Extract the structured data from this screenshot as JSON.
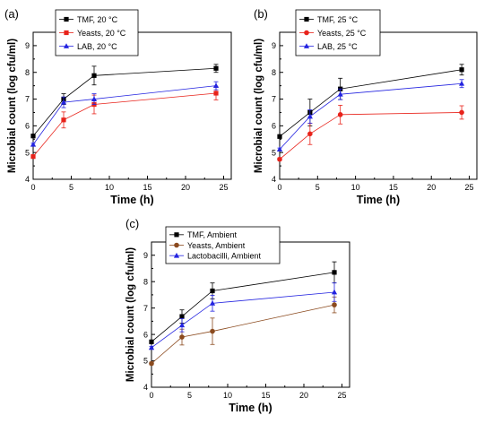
{
  "chart_data": [
    {
      "type": "line",
      "panel_label": "(a)",
      "xlabel": "Time (h)",
      "ylabel": "Microbial count (log cfu/ml)",
      "xlim": [
        0,
        26
      ],
      "ylim": [
        4,
        9.5
      ],
      "xticks": [
        0,
        5,
        10,
        15,
        20,
        25
      ],
      "yticks": [
        4,
        5,
        6,
        7,
        8,
        9
      ],
      "legend_position": "top-left",
      "series": [
        {
          "name": "TMF, 20 °C",
          "color": "#000000",
          "marker": "square",
          "x": [
            0,
            4,
            8,
            24
          ],
          "y": [
            5.62,
            7.0,
            7.88,
            8.15
          ],
          "err": [
            0.05,
            0.2,
            0.35,
            0.15
          ]
        },
        {
          "name": "Yeasts, 20 °C",
          "color": "#e8231b",
          "marker": "square",
          "x": [
            0,
            4,
            8,
            24
          ],
          "y": [
            4.85,
            6.22,
            6.8,
            7.22
          ],
          "err": [
            0.05,
            0.3,
            0.35,
            0.25
          ]
        },
        {
          "name": "LAB, 20 °C",
          "color": "#2323e0",
          "marker": "triangle",
          "x": [
            0,
            4,
            8,
            24
          ],
          "y": [
            5.3,
            6.88,
            7.0,
            7.5
          ],
          "err": [
            0.05,
            0.2,
            0.2,
            0.15
          ]
        }
      ]
    },
    {
      "type": "line",
      "panel_label": "(b)",
      "xlabel": "Time (h)",
      "ylabel": "Microbial count (log cfu/ml)",
      "xlim": [
        0,
        26
      ],
      "ylim": [
        4,
        9.5
      ],
      "xticks": [
        0,
        5,
        10,
        15,
        20,
        25
      ],
      "yticks": [
        4,
        5,
        6,
        7,
        8,
        9
      ],
      "legend_position": "top-left",
      "series": [
        {
          "name": "TMF, 25 °C",
          "color": "#000000",
          "marker": "square",
          "x": [
            0,
            4,
            8,
            24
          ],
          "y": [
            5.6,
            6.5,
            7.38,
            8.1
          ],
          "err": [
            0.05,
            0.5,
            0.4,
            0.2
          ]
        },
        {
          "name": "Yeasts, 25 °C",
          "color": "#e8231b",
          "marker": "circle",
          "x": [
            0,
            4,
            8,
            24
          ],
          "y": [
            4.75,
            5.7,
            6.42,
            6.5
          ],
          "err": [
            0.05,
            0.4,
            0.35,
            0.25
          ]
        },
        {
          "name": "LAB, 25 °C",
          "color": "#2323e0",
          "marker": "triangle",
          "x": [
            0,
            4,
            8,
            24
          ],
          "y": [
            5.12,
            6.35,
            7.18,
            7.58
          ],
          "err": [
            0.05,
            0.25,
            0.2,
            0.15
          ]
        }
      ]
    },
    {
      "type": "line",
      "panel_label": "(c)",
      "xlabel": "Time (h)",
      "ylabel": "Microbial count (log cfu/ml)",
      "xlim": [
        0,
        26
      ],
      "ylim": [
        4,
        9.5
      ],
      "xticks": [
        0,
        5,
        10,
        15,
        20,
        25
      ],
      "yticks": [
        4,
        5,
        6,
        7,
        8,
        9
      ],
      "legend_position": "top-left",
      "series": [
        {
          "name": "TMF, Ambient",
          "color": "#000000",
          "marker": "square",
          "x": [
            0,
            4,
            8,
            24
          ],
          "y": [
            5.72,
            6.68,
            7.65,
            8.35
          ],
          "err": [
            0.05,
            0.25,
            0.3,
            0.4
          ]
        },
        {
          "name": "Yeasts, Ambient",
          "color": "#8b4a1e",
          "marker": "circle",
          "x": [
            0,
            4,
            8,
            24
          ],
          "y": [
            4.9,
            5.9,
            6.12,
            7.12
          ],
          "err": [
            0.05,
            0.3,
            0.5,
            0.3
          ]
        },
        {
          "name": "Lactobacilli, Ambient",
          "color": "#2323e0",
          "marker": "triangle",
          "x": [
            0,
            4,
            8,
            24
          ],
          "y": [
            5.5,
            6.35,
            7.18,
            7.6
          ],
          "err": [
            0.05,
            0.25,
            0.3,
            0.35
          ]
        }
      ]
    }
  ]
}
